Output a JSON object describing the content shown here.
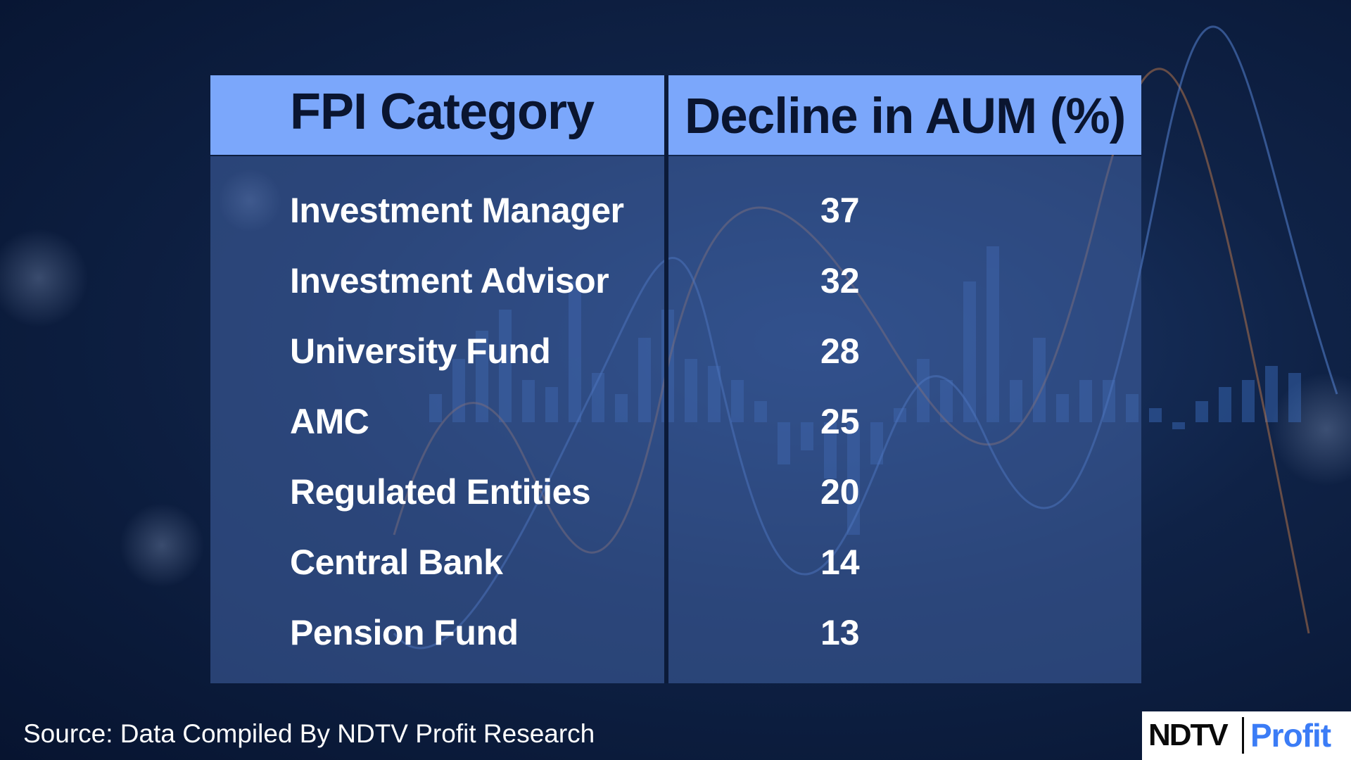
{
  "table": {
    "headers": {
      "category": "FPI Category",
      "value": "Decline in AUM (%)"
    },
    "rows": [
      {
        "category": "Investment Manager",
        "value": "37"
      },
      {
        "category": "Investment Advisor",
        "value": "32"
      },
      {
        "category": "University Fund",
        "value": "28"
      },
      {
        "category": "AMC",
        "value": "25"
      },
      {
        "category": "Regulated Entities",
        "value": "20"
      },
      {
        "category": "Central Bank",
        "value": "14"
      },
      {
        "category": "Pension Fund",
        "value": "13"
      }
    ]
  },
  "chart_data": {
    "type": "table",
    "columns": [
      "FPI Category",
      "Decline in AUM (%)"
    ],
    "categories": [
      "Investment Manager",
      "Investment Advisor",
      "University Fund",
      "AMC",
      "Regulated Entities",
      "Central Bank",
      "Pension Fund"
    ],
    "values": [
      37,
      32,
      28,
      25,
      20,
      14,
      13
    ]
  },
  "footer": {
    "source": "Source: Data Compiled By NDTV Profit Research"
  },
  "logo": {
    "brand": "NDTV",
    "sub_brand": "Profit"
  },
  "colors": {
    "header_bg": "#7ba7fb",
    "body_bg": "#4364a5",
    "page_bg": "#0f2246",
    "profit_blue": "#3b7cf6"
  }
}
